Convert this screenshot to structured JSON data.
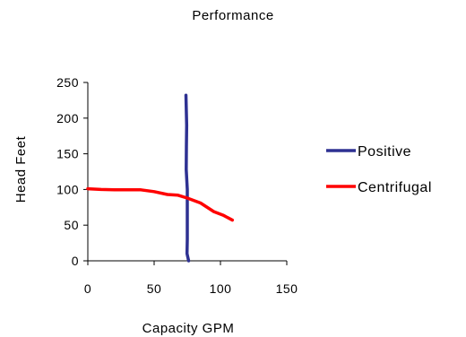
{
  "chart_data": {
    "type": "line",
    "title": "Performance",
    "xlabel": "Capacity GPM",
    "ylabel": "Head Feet",
    "xlim": [
      0,
      150
    ],
    "ylim": [
      0,
      250
    ],
    "x_ticks": [
      0,
      50,
      100,
      150
    ],
    "y_ticks": [
      0,
      50,
      100,
      150,
      200,
      250
    ],
    "grid": false,
    "legend_position": "right",
    "series": [
      {
        "name": "Positive",
        "color": "#2e3192",
        "points": [
          [
            74,
            232
          ],
          [
            74.5,
            190
          ],
          [
            74.3,
            160
          ],
          [
            74.2,
            128
          ],
          [
            75,
            100
          ],
          [
            75,
            60
          ],
          [
            75,
            30
          ],
          [
            74.8,
            10
          ],
          [
            76,
            0
          ]
        ]
      },
      {
        "name": "Centrifugal",
        "color": "#ff0000",
        "points": [
          [
            0,
            101
          ],
          [
            10,
            100
          ],
          [
            20,
            99.5
          ],
          [
            30,
            99.5
          ],
          [
            40,
            99.5
          ],
          [
            50,
            97
          ],
          [
            60,
            93
          ],
          [
            68,
            92
          ],
          [
            75,
            88
          ],
          [
            85,
            81
          ],
          [
            95,
            69
          ],
          [
            102,
            64
          ],
          [
            109,
            57
          ]
        ]
      }
    ]
  }
}
